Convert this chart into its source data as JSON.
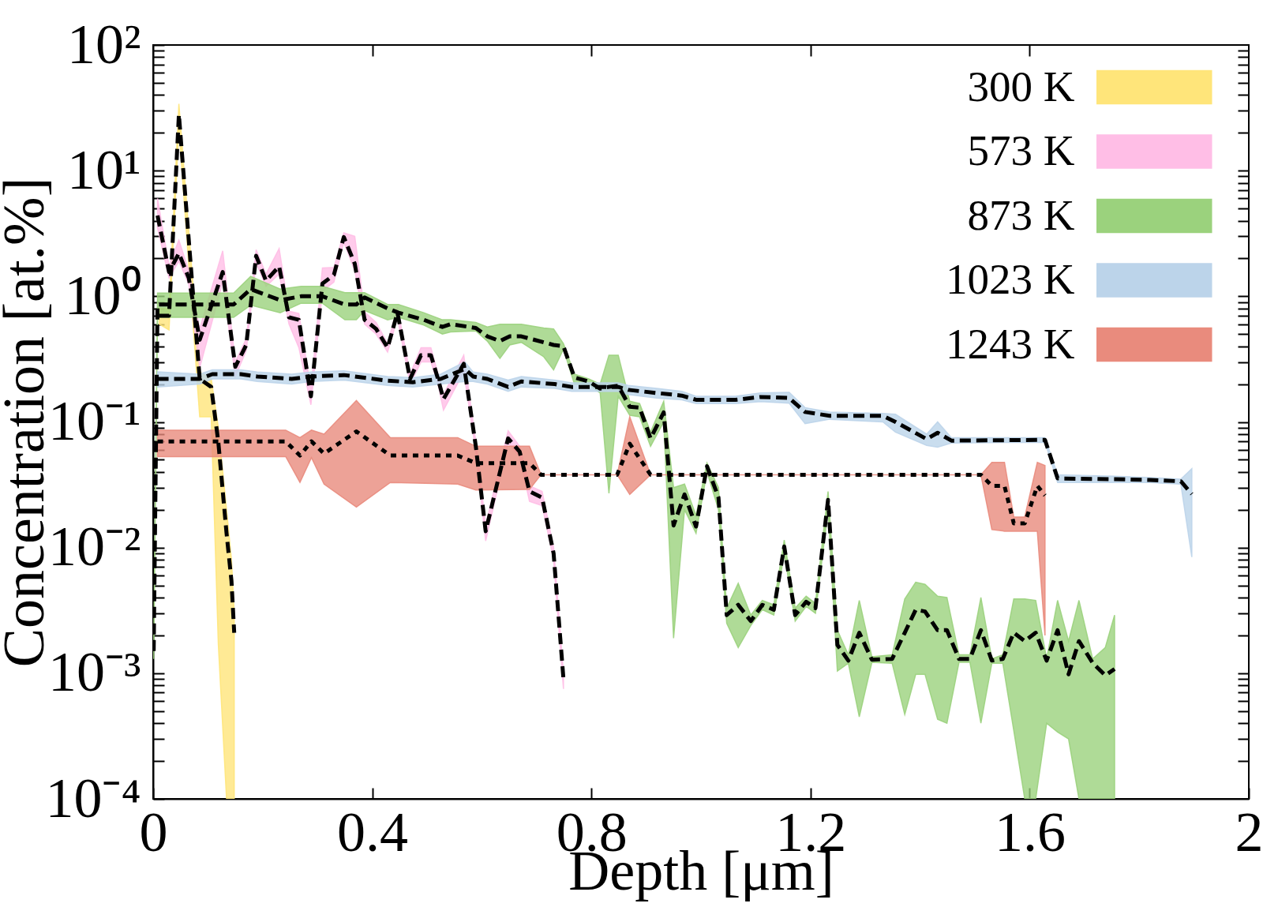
{
  "chart_data": {
    "type": "line",
    "xlabel": "Depth [μm]",
    "ylabel": "Concentration [at.%]",
    "log": "y",
    "grid": false,
    "legend": "top right",
    "xlim": [
      0,
      2
    ],
    "xticks": [
      0,
      0.4,
      0.8,
      1.2,
      1.6,
      2
    ],
    "ylim": [
      0.0001,
      100
    ],
    "yticks": [
      {
        "value": 0.0001,
        "label": "10⁻⁴"
      },
      {
        "value": 0.0002,
        "label": null
      },
      {
        "value": 0.0003,
        "label": null
      },
      {
        "value": 0.0004,
        "label": null
      },
      {
        "value": 0.0005,
        "label": null
      },
      {
        "value": 0.0006,
        "label": null
      },
      {
        "value": 0.0007,
        "label": null
      },
      {
        "value": 0.0008,
        "label": null
      },
      {
        "value": 0.0009,
        "label": null
      },
      {
        "value": 0.001,
        "label": "10⁻³"
      },
      {
        "value": 0.002,
        "label": null
      },
      {
        "value": 0.003,
        "label": null
      },
      {
        "value": 0.004,
        "label": null
      },
      {
        "value": 0.005,
        "label": null
      },
      {
        "value": 0.006,
        "label": null
      },
      {
        "value": 0.007,
        "label": null
      },
      {
        "value": 0.008,
        "label": null
      },
      {
        "value": 0.009,
        "label": null
      },
      {
        "value": 0.01,
        "label": "10⁻²"
      },
      {
        "value": 0.02,
        "label": null
      },
      {
        "value": 0.03,
        "label": null
      },
      {
        "value": 0.04,
        "label": null
      },
      {
        "value": 0.05,
        "label": null
      },
      {
        "value": 0.06,
        "label": null
      },
      {
        "value": 0.07,
        "label": null
      },
      {
        "value": 0.08,
        "label": null
      },
      {
        "value": 0.09,
        "label": null
      },
      {
        "value": 0.1,
        "label": "10⁻¹"
      },
      {
        "value": 0.2,
        "label": null
      },
      {
        "value": 0.3,
        "label": null
      },
      {
        "value": 0.4,
        "label": null
      },
      {
        "value": 0.5,
        "label": null
      },
      {
        "value": 0.6,
        "label": null
      },
      {
        "value": 0.7,
        "label": null
      },
      {
        "value": 0.8,
        "label": null
      },
      {
        "value": 0.9,
        "label": null
      },
      {
        "value": 1,
        "label": "10⁰"
      },
      {
        "value": 2,
        "label": null
      },
      {
        "value": 3,
        "label": null
      },
      {
        "value": 4,
        "label": null
      },
      {
        "value": 5,
        "label": null
      },
      {
        "value": 6,
        "label": null
      },
      {
        "value": 7,
        "label": null
      },
      {
        "value": 8,
        "label": null
      },
      {
        "value": 9,
        "label": null
      },
      {
        "value": 10,
        "label": "10¹"
      },
      {
        "value": 20,
        "label": null
      },
      {
        "value": 30,
        "label": null
      },
      {
        "value": 40,
        "label": null
      },
      {
        "value": 50,
        "label": null
      },
      {
        "value": 60,
        "label": null
      },
      {
        "value": 70,
        "label": null
      },
      {
        "value": 80,
        "label": null
      },
      {
        "value": 90,
        "label": null
      },
      {
        "value": 100,
        "label": "10²"
      }
    ],
    "series": [
      {
        "name": "300 K",
        "color": "#ffe57a",
        "x": [
          0.011,
          0.029,
          0.047,
          0.085,
          0.106,
          0.119,
          0.134,
          0.143,
          0.148
        ],
        "values": [
          null,
          null,
          null,
          null,
          null,
          null,
          null,
          null,
          null
        ],
        "lower": [
          0.6,
          0.54,
          22,
          0.11,
          0.11,
          0.0017,
          0.0001,
          0.0001,
          0.0001
        ],
        "upper": [
          0.8,
          0.8,
          34,
          0.25,
          0.22,
          0.09,
          0.02,
          0.008,
          0.003
        ]
      },
      {
        "color": "#000000",
        "line_style": "dashed",
        "x": [
          0.011,
          0.029,
          0.047,
          0.085,
          0.106,
          0.119,
          0.134,
          0.143,
          0.148
        ],
        "values": [
          0.7,
          0.7,
          28,
          0.22,
          0.19,
          0.069,
          0.013,
          0.0054,
          0.0021
        ]
      },
      {
        "name": "573 K",
        "color": "#ffbee6",
        "x": [
          0.008,
          0.029,
          0.047,
          0.065,
          0.085,
          0.127,
          0.15,
          0.17,
          0.188,
          0.206,
          0.23,
          0.248,
          0.266,
          0.288,
          0.309,
          0.33,
          0.348,
          0.368,
          0.386,
          0.407,
          0.428,
          0.446,
          0.469,
          0.489,
          0.507,
          0.52,
          0.53,
          0.567,
          0.589,
          0.607,
          0.648,
          0.669,
          0.687,
          0.71,
          0.731,
          0.749
        ],
        "values": [
          null,
          null,
          null,
          null,
          null,
          null,
          null,
          null,
          null,
          null,
          null,
          null,
          null,
          null,
          null,
          null,
          null,
          null,
          null,
          null,
          null,
          null,
          null,
          null,
          null,
          null,
          null,
          null,
          null,
          null,
          null,
          null,
          null,
          null,
          null,
          null
        ],
        "lower": [
          3.5,
          1.4,
          1.9,
          1.25,
          0.27,
          1.3,
          0.23,
          0.37,
          1.85,
          1.2,
          1.5,
          0.6,
          0.39,
          0.137,
          1.1,
          1.3,
          2.7,
          1.6,
          0.6,
          0.5,
          0.36,
          0.67,
          0.2,
          0.3,
          0.3,
          0.2,
          0.124,
          0.25,
          0.058,
          0.0113,
          0.068,
          0.053,
          0.0233,
          0.0216,
          0.008,
          0.00075
        ],
        "upper": [
          6,
          1.75,
          2.8,
          1.6,
          0.55,
          2.3,
          0.3,
          0.46,
          2.35,
          1.5,
          2.4,
          0.76,
          0.73,
          0.18,
          1.68,
          1.7,
          3.2,
          3.0,
          0.75,
          0.62,
          0.42,
          0.82,
          0.24,
          0.39,
          0.39,
          0.24,
          0.165,
          0.34,
          0.07,
          0.015,
          0.085,
          0.064,
          0.031,
          0.028,
          0.01,
          0.001
        ]
      },
      {
        "color": "#000000",
        "line_style": "dashed",
        "x": [
          0.008,
          0.029,
          0.047,
          0.065,
          0.085,
          0.127,
          0.15,
          0.17,
          0.188,
          0.206,
          0.23,
          0.248,
          0.266,
          0.288,
          0.309,
          0.33,
          0.348,
          0.368,
          0.386,
          0.407,
          0.428,
          0.446,
          0.469,
          0.489,
          0.507,
          0.52,
          0.53,
          0.567,
          0.589,
          0.607,
          0.648,
          0.669,
          0.687,
          0.71,
          0.731,
          0.749
        ],
        "values": [
          4.4,
          1.56,
          2.2,
          1.4,
          0.45,
          1.56,
          0.275,
          0.41,
          2.1,
          1.33,
          1.73,
          0.68,
          0.65,
          0.16,
          1.26,
          1.48,
          2.96,
          1.82,
          0.65,
          0.55,
          0.39,
          0.74,
          0.22,
          0.34,
          0.34,
          0.22,
          0.152,
          0.29,
          0.064,
          0.0135,
          0.074,
          0.058,
          0.028,
          0.025,
          0.009,
          0.0009
        ]
      },
      {
        "name": "873 K",
        "color": "#9bd27d",
        "x": [
          0.001,
          0.008,
          0.047,
          0.098,
          0.147,
          0.178,
          0.232,
          0.27,
          0.309,
          0.35,
          0.371,
          0.386,
          0.428,
          0.448,
          0.494,
          0.528,
          0.543,
          0.589,
          0.61,
          0.633,
          0.651,
          0.672,
          0.713,
          0.731,
          0.749,
          0.769,
          0.795,
          0.816,
          0.832,
          0.849,
          0.87,
          0.888,
          0.908,
          0.932,
          0.95,
          0.97,
          0.991,
          1.011,
          1.032,
          1.047,
          1.068,
          1.091,
          1.112,
          1.133,
          1.152,
          1.172,
          1.192,
          1.209,
          1.232,
          1.249,
          1.269,
          1.289,
          1.312,
          1.349,
          1.372,
          1.392,
          1.409,
          1.432,
          1.449,
          1.471,
          1.491,
          1.511,
          1.531,
          1.551,
          1.571,
          1.591,
          1.611,
          1.631,
          1.651,
          1.671,
          1.69,
          1.715,
          1.738,
          1.755
        ],
        "values": [
          null,
          null,
          null,
          null,
          null,
          null,
          null,
          null,
          null,
          null,
          null,
          null,
          null,
          null,
          null,
          null,
          null,
          null,
          null,
          null,
          null,
          null,
          null,
          null,
          null,
          null,
          null,
          null,
          null,
          null,
          null,
          null,
          null,
          null,
          null,
          null,
          null,
          null,
          null,
          null,
          null,
          null,
          null,
          null,
          null,
          null,
          null,
          null,
          null,
          null,
          null,
          null,
          null,
          null,
          null,
          null,
          null,
          null,
          null,
          null,
          null,
          null,
          null,
          null,
          null,
          null,
          null,
          null,
          null,
          null,
          null,
          null,
          null,
          null
        ],
        "lower": [
          0.0013,
          0.68,
          0.68,
          0.68,
          0.68,
          0.85,
          0.74,
          0.88,
          0.88,
          0.65,
          0.65,
          0.77,
          0.65,
          0.68,
          0.59,
          0.5,
          0.52,
          0.53,
          0.44,
          0.32,
          0.41,
          0.43,
          0.33,
          0.26,
          0.38,
          0.2,
          0.2,
          0.17,
          0.027,
          0.16,
          0.113,
          0.11,
          0.064,
          0.1,
          0.0019,
          0.02,
          0.013,
          0.04,
          0.02,
          0.0025,
          0.0016,
          0.0024,
          0.0032,
          0.0029,
          0.009,
          0.0026,
          0.0034,
          0.003,
          0.02,
          0.00104,
          0.0012,
          0.00045,
          0.00122,
          0.0012,
          0.00047,
          0.00098,
          0.00098,
          0.00043,
          0.0004,
          0.00122,
          0.00122,
          0.0004,
          0.0012,
          0.0012,
          0.00035,
          0.0001,
          0.0001,
          0.0004,
          0.00034,
          0.0003,
          0.0001,
          0.0001,
          0.0001,
          0.0001
        ],
        "upper": [
          0.0017,
          1.06,
          1.06,
          1.06,
          1.06,
          1.44,
          1.14,
          1.2,
          1.2,
          1.07,
          1.07,
          1.07,
          0.86,
          0.86,
          0.74,
          0.65,
          0.65,
          0.62,
          0.57,
          0.6,
          0.6,
          0.6,
          0.56,
          0.55,
          0.42,
          0.24,
          0.22,
          0.2,
          0.34,
          0.34,
          0.146,
          0.14,
          0.083,
          0.146,
          0.03,
          0.032,
          0.018,
          0.047,
          0.03,
          0.0033,
          0.0052,
          0.0029,
          0.0038,
          0.0035,
          0.0115,
          0.0033,
          0.0041,
          0.0036,
          0.028,
          0.0022,
          0.0014,
          0.0038,
          0.00135,
          0.0014,
          0.0039,
          0.0053,
          0.0051,
          0.0041,
          0.004,
          0.0014,
          0.0014,
          0.004,
          0.0013,
          0.0014,
          0.0039,
          0.0039,
          0.0038,
          0.0013,
          0.0038,
          0.0018,
          0.0038,
          0.0013,
          0.0016,
          0.0029
        ]
      },
      {
        "color": "#000000",
        "line_style": "dashed",
        "x": [
          0.001,
          0.008,
          0.047,
          0.098,
          0.147,
          0.178,
          0.232,
          0.27,
          0.309,
          0.35,
          0.371,
          0.386,
          0.428,
          0.448,
          0.494,
          0.528,
          0.543,
          0.589,
          0.61,
          0.633,
          0.651,
          0.672,
          0.713,
          0.731,
          0.749,
          0.769,
          0.795,
          0.816,
          0.832,
          0.849,
          0.87,
          0.888,
          0.908,
          0.932,
          0.95,
          0.97,
          0.991,
          1.011,
          1.032,
          1.047,
          1.068,
          1.091,
          1.112,
          1.133,
          1.152,
          1.172,
          1.192,
          1.209,
          1.232,
          1.249,
          1.269,
          1.289,
          1.312,
          1.349,
          1.372,
          1.392,
          1.409,
          1.432,
          1.449,
          1.471,
          1.491,
          1.511,
          1.531,
          1.551,
          1.571,
          1.591,
          1.611,
          1.631,
          1.651,
          1.671,
          1.69,
          1.715,
          1.738,
          1.755
        ],
        "values": [
          0.0015,
          0.86,
          0.86,
          0.86,
          0.86,
          1.14,
          0.93,
          1.0,
          1.0,
          0.86,
          0.86,
          0.98,
          0.8,
          0.74,
          0.65,
          0.57,
          0.6,
          0.56,
          0.48,
          0.44,
          0.48,
          0.48,
          0.43,
          0.41,
          0.4,
          0.226,
          0.21,
          0.184,
          0.19,
          0.194,
          0.132,
          0.13,
          0.074,
          0.119,
          0.015,
          0.0265,
          0.0147,
          0.0444,
          0.025,
          0.0029,
          0.0035,
          0.0026,
          0.0035,
          0.0032,
          0.0102,
          0.0029,
          0.0037,
          0.0033,
          0.024,
          0.00168,
          0.00126,
          0.0021,
          0.00128,
          0.0013,
          0.0021,
          0.0032,
          0.0031,
          0.0022,
          0.0022,
          0.0013,
          0.0013,
          0.0022,
          0.00126,
          0.0013,
          0.0021,
          0.0018,
          0.0021,
          0.00126,
          0.0022,
          0.00098,
          0.0018,
          0.00121,
          0.00096,
          0.00108
        ]
      },
      {
        "name": "1023 K",
        "color": "#bcd4ea",
        "x": [
          0.008,
          0.085,
          0.108,
          0.16,
          0.19,
          0.253,
          0.289,
          0.348,
          0.428,
          0.474,
          0.525,
          0.569,
          0.584,
          0.61,
          0.648,
          0.672,
          0.733,
          0.764,
          0.849,
          0.867,
          0.919,
          0.965,
          0.991,
          1.063,
          1.109,
          1.161,
          1.19,
          1.235,
          1.332,
          1.355,
          1.412,
          1.432,
          1.457,
          1.628,
          1.651,
          1.755,
          1.819,
          1.876,
          1.896
        ],
        "values": [
          null,
          null,
          null,
          null,
          null,
          null,
          null,
          null,
          null,
          null,
          null,
          null,
          null,
          null,
          null,
          null,
          null,
          null,
          null,
          null,
          null,
          null,
          null,
          null,
          null,
          null,
          null,
          null,
          null,
          null,
          null,
          null,
          null,
          null,
          null,
          null,
          null,
          null,
          null
        ],
        "lower": [
          0.19,
          0.2,
          0.22,
          0.22,
          0.21,
          0.2,
          0.21,
          0.215,
          0.195,
          0.19,
          0.2,
          0.21,
          0.21,
          0.2,
          0.175,
          0.19,
          0.185,
          0.175,
          0.175,
          0.165,
          0.155,
          0.15,
          0.14,
          0.14,
          0.145,
          0.141,
          0.097,
          0.105,
          0.1,
          0.083,
          0.065,
          0.063,
          0.068,
          0.069,
          0.033,
          0.033,
          0.033,
          0.032,
          0.0084
        ],
        "upper": [
          0.25,
          0.24,
          0.26,
          0.26,
          0.25,
          0.24,
          0.25,
          0.255,
          0.23,
          0.225,
          0.24,
          0.3,
          0.25,
          0.24,
          0.215,
          0.23,
          0.215,
          0.205,
          0.205,
          0.195,
          0.185,
          0.175,
          0.16,
          0.16,
          0.17,
          0.172,
          0.13,
          0.12,
          0.117,
          0.115,
          0.08,
          0.1,
          0.075,
          0.075,
          0.038,
          0.037,
          0.036,
          0.035,
          0.0425
        ]
      },
      {
        "color": "#000000",
        "line_style": "dashed",
        "x": [
          0.008,
          0.085,
          0.108,
          0.16,
          0.19,
          0.253,
          0.289,
          0.348,
          0.428,
          0.474,
          0.525,
          0.569,
          0.584,
          0.61,
          0.648,
          0.672,
          0.733,
          0.764,
          0.849,
          0.867,
          0.919,
          0.965,
          0.991,
          1.063,
          1.109,
          1.161,
          1.19,
          1.235,
          1.332,
          1.355,
          1.412,
          1.432,
          1.457,
          1.628,
          1.651,
          1.755,
          1.819,
          1.876,
          1.896
        ],
        "values": [
          0.22,
          0.22,
          0.24,
          0.24,
          0.23,
          0.22,
          0.23,
          0.236,
          0.213,
          0.207,
          0.22,
          0.264,
          0.23,
          0.22,
          0.19,
          0.21,
          0.2,
          0.19,
          0.19,
          0.18,
          0.17,
          0.162,
          0.15,
          0.15,
          0.158,
          0.155,
          0.12,
          0.112,
          0.112,
          0.1,
          0.073,
          0.082,
          0.071,
          0.072,
          0.0355,
          0.035,
          0.0345,
          0.0337,
          0.0267
        ]
      },
      {
        "name": "1243 K",
        "color": "#e98b7d",
        "x": [
          0.008,
          0.242,
          0.268,
          0.289,
          0.312,
          0.371,
          0.433,
          0.556,
          0.589,
          0.687,
          0.708,
          0.847,
          0.87,
          0.908,
          1.511,
          1.531,
          1.554,
          1.571,
          1.591,
          1.614,
          1.628
        ],
        "values": [
          null,
          null,
          null,
          null,
          null,
          null,
          null,
          null,
          null,
          null,
          null,
          null,
          null,
          null,
          null,
          null,
          null,
          null,
          null,
          null,
          null
        ],
        "lower": [
          0.053,
          0.053,
          0.033,
          0.052,
          0.032,
          0.021,
          0.033,
          0.032,
          0.0287,
          0.029,
          0.038,
          0.038,
          0.0265,
          0.038,
          0.038,
          0.0139,
          0.0135,
          0.0135,
          0.0135,
          0.0135,
          0.002
        ],
        "upper": [
          0.086,
          0.086,
          0.075,
          0.086,
          0.08,
          0.148,
          0.075,
          0.075,
          0.064,
          0.064,
          0.038,
          0.038,
          0.11,
          0.038,
          0.038,
          0.0477,
          0.0477,
          0.0175,
          0.0175,
          0.0477,
          0.045
        ]
      },
      {
        "color": "#000000",
        "line_style": "dotted",
        "x": [
          0.008,
          0.242,
          0.268,
          0.289,
          0.312,
          0.371,
          0.433,
          0.556,
          0.589,
          0.687,
          0.708,
          0.847,
          0.87,
          0.908,
          1.511,
          1.531,
          1.554,
          1.571,
          1.591,
          1.614,
          1.628
        ],
        "values": [
          0.07,
          0.07,
          0.054,
          0.07,
          0.056,
          0.084,
          0.054,
          0.054,
          0.047,
          0.047,
          0.038,
          0.038,
          0.067,
          0.038,
          0.038,
          0.031,
          0.031,
          0.0156,
          0.0156,
          0.031,
          0.026
        ]
      }
    ]
  }
}
